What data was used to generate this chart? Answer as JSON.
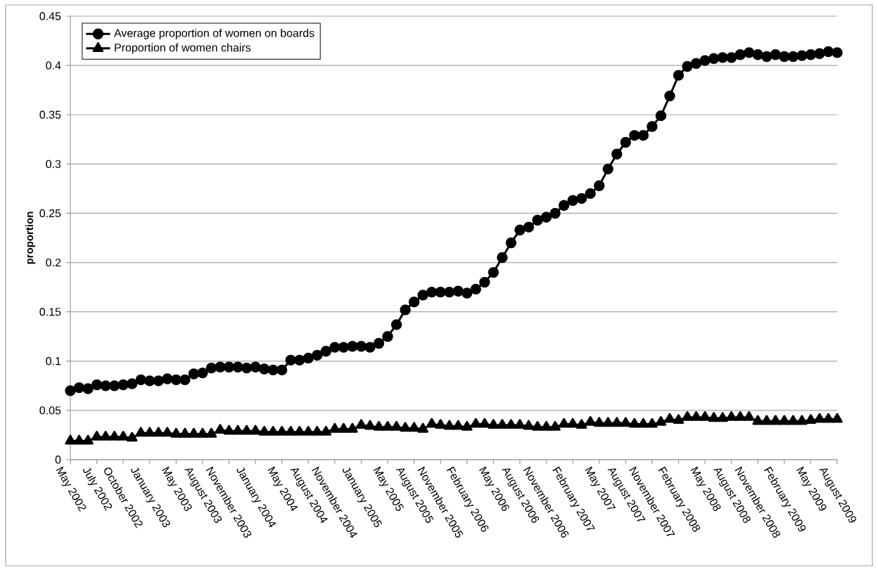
{
  "chart_data": {
    "type": "line",
    "ylabel": "proportion",
    "categories": [
      "May 2002",
      null,
      null,
      "July 2002",
      null,
      null,
      "October 2002",
      null,
      null,
      "January 2003",
      null,
      null,
      "May 2003",
      null,
      null,
      "August 2003",
      null,
      null,
      "November 2003",
      null,
      null,
      "January 2004",
      null,
      null,
      "May 2004",
      null,
      null,
      "August 2004",
      null,
      null,
      "November 2004",
      null,
      null,
      "January 2005",
      null,
      null,
      "May 2005",
      null,
      null,
      "August 2005",
      null,
      null,
      "November 2005",
      null,
      null,
      "February 2006",
      null,
      null,
      "May 2006",
      null,
      null,
      "August 2006",
      null,
      null,
      "November 2006",
      null,
      null,
      "February 2007",
      null,
      null,
      "May 2007",
      null,
      null,
      "August 2007",
      null,
      null,
      "November 2007",
      null,
      null,
      "February 2008",
      null,
      null,
      "May 2008",
      null,
      null,
      "August 2008",
      null,
      null,
      "November 2008",
      null,
      null,
      "February 2009",
      null,
      null,
      "May 2009",
      null,
      null,
      "August 2009"
    ],
    "series": [
      {
        "name": "Average proportion of women on boards",
        "color": "#000000",
        "marker": "circle",
        "values": [
          0.07,
          0.073,
          0.072,
          0.076,
          0.075,
          0.075,
          0.076,
          0.077,
          0.081,
          0.08,
          0.08,
          0.082,
          0.081,
          0.081,
          0.087,
          0.088,
          0.093,
          0.094,
          0.094,
          0.094,
          0.093,
          0.094,
          0.092,
          0.091,
          0.091,
          0.101,
          0.101,
          0.103,
          0.106,
          0.11,
          0.114,
          0.114,
          0.115,
          0.115,
          0.114,
          0.118,
          0.125,
          0.137,
          0.152,
          0.16,
          0.167,
          0.17,
          0.17,
          0.17,
          0.171,
          0.169,
          0.173,
          0.18,
          0.19,
          0.205,
          0.22,
          0.233,
          0.236,
          0.243,
          0.246,
          0.25,
          0.258,
          0.263,
          0.265,
          0.27,
          0.278,
          0.295,
          0.31,
          0.322,
          0.329,
          0.329,
          0.338,
          0.349,
          0.369,
          0.39,
          0.399,
          0.402,
          0.405,
          0.407,
          0.408,
          0.408,
          0.411,
          0.413,
          0.411,
          0.409,
          0.411,
          0.409,
          0.409,
          0.41,
          0.411,
          0.412,
          0.414,
          0.413
        ]
      },
      {
        "name": "Proportion of women chairs",
        "color": "#000000",
        "marker": "triangle",
        "values": [
          0.019,
          0.019,
          0.019,
          0.023,
          0.023,
          0.023,
          0.023,
          0.022,
          0.027,
          0.027,
          0.027,
          0.027,
          0.026,
          0.026,
          0.026,
          0.026,
          0.026,
          0.03,
          0.029,
          0.029,
          0.029,
          0.029,
          0.028,
          0.028,
          0.028,
          0.028,
          0.028,
          0.028,
          0.028,
          0.028,
          0.031,
          0.031,
          0.031,
          0.035,
          0.034,
          0.033,
          0.033,
          0.033,
          0.032,
          0.032,
          0.031,
          0.036,
          0.035,
          0.034,
          0.034,
          0.033,
          0.036,
          0.036,
          0.035,
          0.035,
          0.035,
          0.035,
          0.034,
          0.033,
          0.033,
          0.033,
          0.036,
          0.036,
          0.035,
          0.038,
          0.037,
          0.037,
          0.037,
          0.037,
          0.036,
          0.036,
          0.036,
          0.038,
          0.041,
          0.04,
          0.043,
          0.043,
          0.043,
          0.042,
          0.042,
          0.043,
          0.043,
          0.043,
          0.039,
          0.039,
          0.039,
          0.039,
          0.039,
          0.039,
          0.04,
          0.041,
          0.041,
          0.041
        ]
      }
    ],
    "ylim": [
      0,
      0.45
    ],
    "yticks": [
      0,
      0.05,
      0.1,
      0.15,
      0.2,
      0.25,
      0.3,
      0.35,
      0.4,
      0.45
    ],
    "grid": "y",
    "legend": "top left",
    "line_style": "solid"
  }
}
